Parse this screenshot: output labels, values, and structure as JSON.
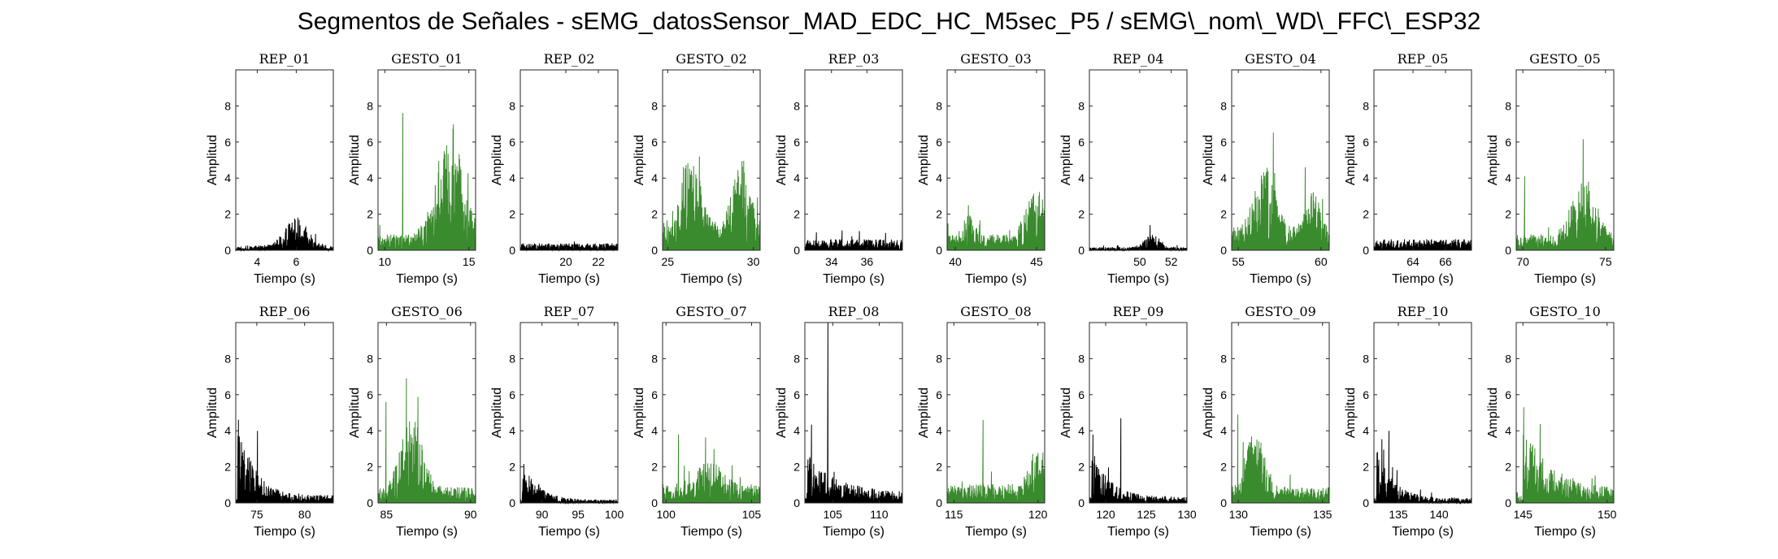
{
  "figure": {
    "title": "Segmentos de Señales - sEMG_datosSensor_MAD_EDC_HC_M5sec_P5 / sEMG\\_nom\\_WD\\_FFC\\_ESP32",
    "colors": {
      "rep": "#000000",
      "gesto": "#3a8a2e",
      "axis": "#262626"
    }
  },
  "chart_data": [
    {
      "type": "area",
      "title": "REP_01",
      "xlabel": "Tiempo (s)",
      "ylabel": "Amplitud",
      "series": [
        {
          "color": "#000000"
        }
      ],
      "ylim": [
        0,
        10
      ],
      "yticks": [
        0,
        2,
        4,
        6,
        8
      ],
      "xlim": [
        2.9,
        7.9
      ],
      "xticks": [
        4,
        6
      ],
      "profile": {
        "base": 0.15,
        "bursts": [
          {
            "c": 6.0,
            "w": 1.6,
            "a": 0.9
          }
        ]
      }
    },
    {
      "type": "area",
      "title": "GESTO_01",
      "xlabel": "Tiempo (s)",
      "ylabel": "Amplitud",
      "series": [
        {
          "color": "#3a8a2e"
        }
      ],
      "ylim": [
        0,
        10
      ],
      "yticks": [
        0,
        2,
        4,
        6,
        8
      ],
      "xlim": [
        9.6,
        15.4
      ],
      "xticks": [
        10,
        15
      ],
      "profile": {
        "base": 0.5,
        "peak": 7.6,
        "bursts": [
          {
            "c": 13.9,
            "w": 2.2,
            "a": 3.6
          }
        ]
      }
    },
    {
      "type": "area",
      "title": "REP_02",
      "xlabel": "Tiempo (s)",
      "ylabel": "Amplitud",
      "series": [
        {
          "color": "#000000"
        }
      ],
      "ylim": [
        0,
        10
      ],
      "yticks": [
        0,
        2,
        4,
        6,
        8
      ],
      "xlim": [
        17.2,
        23.2
      ],
      "xticks": [
        20,
        22
      ],
      "profile": {
        "base": 0.22,
        "bursts": []
      }
    },
    {
      "type": "area",
      "title": "GESTO_02",
      "xlabel": "Tiempo (s)",
      "ylabel": "Amplitud",
      "series": [
        {
          "color": "#3a8a2e"
        }
      ],
      "ylim": [
        0,
        10
      ],
      "yticks": [
        0,
        2,
        4,
        6,
        8
      ],
      "xlim": [
        24.7,
        30.4
      ],
      "xticks": [
        25,
        30
      ],
      "profile": {
        "base": 0.8,
        "peak": 5.2,
        "bursts": [
          {
            "c": 26.3,
            "w": 1.6,
            "a": 2.4
          },
          {
            "c": 29.3,
            "w": 1.4,
            "a": 2.2
          }
        ]
      }
    },
    {
      "type": "area",
      "title": "REP_03",
      "xlabel": "Tiempo (s)",
      "ylabel": "Amplitud",
      "series": [
        {
          "color": "#000000"
        }
      ],
      "ylim": [
        0,
        10
      ],
      "yticks": [
        0,
        2,
        4,
        6,
        8
      ],
      "xlim": [
        32.5,
        38.0
      ],
      "xticks": [
        34,
        36
      ],
      "profile": {
        "base": 0.35,
        "peak": 1.1,
        "bursts": []
      }
    },
    {
      "type": "area",
      "title": "GESTO_03",
      "xlabel": "Tiempo (s)",
      "ylabel": "Amplitud",
      "series": [
        {
          "color": "#3a8a2e"
        }
      ],
      "ylim": [
        0,
        10
      ],
      "yticks": [
        0,
        2,
        4,
        6,
        8
      ],
      "xlim": [
        39.5,
        45.5
      ],
      "xticks": [
        40,
        45
      ],
      "profile": {
        "base": 0.5,
        "bursts": [
          {
            "c": 45.0,
            "w": 1.8,
            "a": 1.4
          },
          {
            "c": 40.8,
            "w": 1.0,
            "a": 0.8
          }
        ]
      }
    },
    {
      "type": "area",
      "title": "REP_04",
      "xlabel": "Tiempo (s)",
      "ylabel": "Amplitud",
      "series": [
        {
          "color": "#000000"
        }
      ],
      "ylim": [
        0,
        10
      ],
      "yticks": [
        0,
        2,
        4,
        6,
        8
      ],
      "xlim": [
        46.8,
        53.0
      ],
      "xticks": [
        50,
        52
      ],
      "profile": {
        "base": 0.1,
        "bursts": [
          {
            "c": 50.8,
            "w": 1.4,
            "a": 0.4
          }
        ]
      }
    },
    {
      "type": "area",
      "title": "GESTO_04",
      "xlabel": "Tiempo (s)",
      "ylabel": "Amplitud",
      "series": [
        {
          "color": "#3a8a2e"
        }
      ],
      "ylim": [
        0,
        10
      ],
      "yticks": [
        0,
        2,
        4,
        6,
        8
      ],
      "xlim": [
        54.6,
        60.5
      ],
      "xticks": [
        55,
        60
      ],
      "profile": {
        "base": 0.7,
        "peak": 4.6,
        "bursts": [
          {
            "c": 56.6,
            "w": 1.8,
            "a": 2.0
          },
          {
            "c": 59.5,
            "w": 1.2,
            "a": 1.2
          }
        ]
      }
    },
    {
      "type": "area",
      "title": "REP_05",
      "xlabel": "Tiempo (s)",
      "ylabel": "Amplitud",
      "series": [
        {
          "color": "#000000"
        }
      ],
      "ylim": [
        0,
        10
      ],
      "yticks": [
        0,
        2,
        4,
        6,
        8
      ],
      "xlim": [
        61.6,
        67.6
      ],
      "xticks": [
        64,
        66
      ],
      "profile": {
        "base": 0.35,
        "bursts": []
      }
    },
    {
      "type": "area",
      "title": "GESTO_05",
      "xlabel": "Tiempo (s)",
      "ylabel": "Amplitud",
      "series": [
        {
          "color": "#3a8a2e"
        }
      ],
      "ylim": [
        0,
        10
      ],
      "yticks": [
        0,
        2,
        4,
        6,
        8
      ],
      "xlim": [
        69.6,
        75.5
      ],
      "xticks": [
        70,
        75
      ],
      "profile": {
        "base": 0.5,
        "peak": 4.1,
        "bursts": [
          {
            "c": 73.7,
            "w": 2.0,
            "a": 1.8
          }
        ]
      }
    },
    {
      "type": "area",
      "title": "REP_06",
      "xlabel": "Tiempo (s)",
      "ylabel": "Amplitud",
      "series": [
        {
          "color": "#000000"
        }
      ],
      "ylim": [
        0,
        10
      ],
      "yticks": [
        0,
        2,
        4,
        6,
        8
      ],
      "xlim": [
        72.8,
        83.0
      ],
      "xticks": [
        75,
        80
      ],
      "profile": {
        "base": 0.25,
        "peak": 4.0,
        "decay": {
          "start": 73.0,
          "tau": 1.6,
          "a": 2.6
        }
      }
    },
    {
      "type": "area",
      "title": "GESTO_06",
      "xlabel": "Tiempo (s)",
      "ylabel": "Amplitud",
      "series": [
        {
          "color": "#3a8a2e"
        }
      ],
      "ylim": [
        0,
        10
      ],
      "yticks": [
        0,
        2,
        4,
        6,
        8
      ],
      "xlim": [
        84.5,
        90.3
      ],
      "xticks": [
        85,
        90
      ],
      "profile": {
        "base": 0.5,
        "peak": 5.6,
        "bursts": [
          {
            "c": 86.5,
            "w": 1.8,
            "a": 2.2
          }
        ]
      }
    },
    {
      "type": "area",
      "title": "REP_07",
      "xlabel": "Tiempo (s)",
      "ylabel": "Amplitud",
      "series": [
        {
          "color": "#000000"
        }
      ],
      "ylim": [
        0,
        10
      ],
      "yticks": [
        0,
        2,
        4,
        6,
        8
      ],
      "xlim": [
        87.0,
        100.5
      ],
      "xticks": [
        90,
        95,
        100
      ],
      "profile": {
        "base": 0.1,
        "decay": {
          "start": 87.3,
          "tau": 2.0,
          "a": 1.4
        }
      }
    },
    {
      "type": "area",
      "title": "GESTO_07",
      "xlabel": "Tiempo (s)",
      "ylabel": "Amplitud",
      "series": [
        {
          "color": "#3a8a2e"
        }
      ],
      "ylim": [
        0,
        10
      ],
      "yticks": [
        0,
        2,
        4,
        6,
        8
      ],
      "xlim": [
        99.8,
        105.5
      ],
      "xticks": [
        100,
        105
      ],
      "profile": {
        "base": 0.6,
        "peak": 3.8,
        "bursts": [
          {
            "c": 102.5,
            "w": 2.0,
            "a": 0.8
          }
        ]
      }
    },
    {
      "type": "area",
      "title": "REP_08",
      "xlabel": "Tiempo (s)",
      "ylabel": "Amplitud",
      "series": [
        {
          "color": "#000000"
        }
      ],
      "ylim": [
        0,
        10
      ],
      "yticks": [
        0,
        2,
        4,
        6,
        8
      ],
      "xlim": [
        102.0,
        112.5
      ],
      "xticks": [
        105,
        110
      ],
      "profile": {
        "base": 0.35,
        "peak": 10.0,
        "decay": {
          "start": 102.3,
          "tau": 3.0,
          "a": 1.2
        }
      }
    },
    {
      "type": "area",
      "title": "GESTO_08",
      "xlabel": "Tiempo (s)",
      "ylabel": "Amplitud",
      "series": [
        {
          "color": "#3a8a2e"
        }
      ],
      "ylim": [
        0,
        10
      ],
      "yticks": [
        0,
        2,
        4,
        6,
        8
      ],
      "xlim": [
        114.6,
        120.4
      ],
      "xticks": [
        115,
        120
      ],
      "profile": {
        "base": 0.6,
        "peak": 4.6,
        "bursts": [
          {
            "c": 120.0,
            "w": 1.4,
            "a": 1.2
          }
        ]
      }
    },
    {
      "type": "area",
      "title": "REP_09",
      "xlabel": "Tiempo (s)",
      "ylabel": "Amplitud",
      "series": [
        {
          "color": "#000000"
        }
      ],
      "ylim": [
        0,
        10
      ],
      "yticks": [
        0,
        2,
        4,
        6,
        8
      ],
      "xlim": [
        118.0,
        130.0
      ],
      "xticks": [
        120,
        125,
        130
      ],
      "profile": {
        "base": 0.2,
        "peak": 4.7,
        "decay": {
          "start": 118.3,
          "tau": 2.0,
          "a": 1.6
        }
      }
    },
    {
      "type": "area",
      "title": "GESTO_09",
      "xlabel": "Tiempo (s)",
      "ylabel": "Amplitud",
      "series": [
        {
          "color": "#3a8a2e"
        }
      ],
      "ylim": [
        0,
        10
      ],
      "yticks": [
        0,
        2,
        4,
        6,
        8
      ],
      "xlim": [
        129.6,
        135.4
      ],
      "xticks": [
        130,
        135
      ],
      "profile": {
        "base": 0.5,
        "peak": 4.9,
        "bursts": [
          {
            "c": 131.0,
            "w": 1.6,
            "a": 1.8
          }
        ]
      }
    },
    {
      "type": "area",
      "title": "REP_10",
      "xlabel": "Tiempo (s)",
      "ylabel": "Amplitud",
      "series": [
        {
          "color": "#000000"
        }
      ],
      "ylim": [
        0,
        10
      ],
      "yticks": [
        0,
        2,
        4,
        6,
        8
      ],
      "xlim": [
        132.0,
        144.0
      ],
      "xticks": [
        135,
        140
      ],
      "profile": {
        "base": 0.15,
        "peak": 4.0,
        "decay": {
          "start": 132.3,
          "tau": 2.0,
          "a": 1.6
        }
      }
    },
    {
      "type": "area",
      "title": "GESTO_10",
      "xlabel": "Tiempo (s)",
      "ylabel": "Amplitud",
      "series": [
        {
          "color": "#3a8a2e"
        }
      ],
      "ylim": [
        0,
        10
      ],
      "yticks": [
        0,
        2,
        4,
        6,
        8
      ],
      "xlim": [
        144.6,
        150.4
      ],
      "xticks": [
        145,
        150
      ],
      "profile": {
        "base": 0.4,
        "peak": 5.3,
        "decay": {
          "start": 145.0,
          "tau": 1.8,
          "a": 2.0
        }
      }
    }
  ]
}
